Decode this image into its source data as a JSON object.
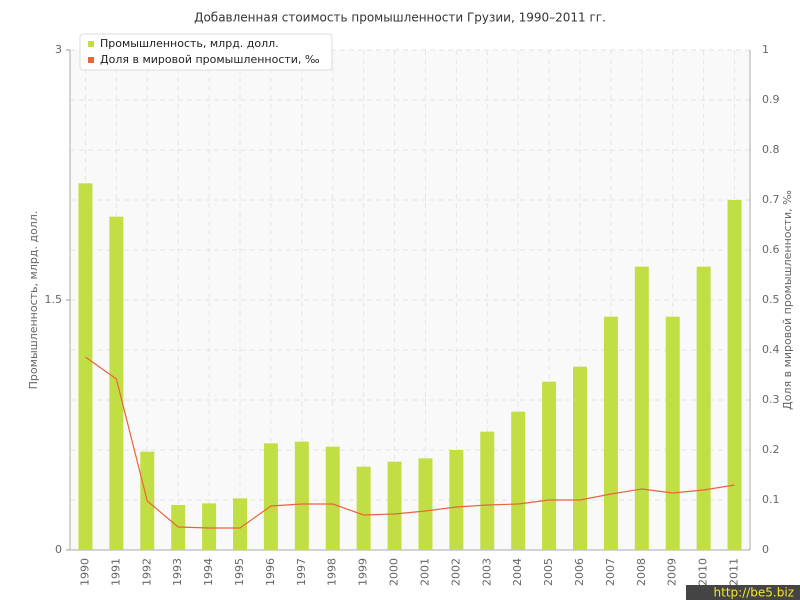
{
  "chart_data": {
    "type": "bar_line",
    "title": "Добавленная стоимость промышленности Грузии, 1990–2011 гг.",
    "y_label": "Промышленность, млрд. долл.",
    "y2_label": "Доля в мировой промышленности, ‰",
    "categories": [
      "1990",
      "1991",
      "1992",
      "1993",
      "1994",
      "1995",
      "1996",
      "1997",
      "1998",
      "1999",
      "2000",
      "2001",
      "2002",
      "2003",
      "2004",
      "2005",
      "2006",
      "2007",
      "2008",
      "2009",
      "2010",
      "2011"
    ],
    "series": [
      {
        "name": "Промышленность, млрд. долл.",
        "type": "bar",
        "color": "#c2de45",
        "values": [
          2.2,
          2.0,
          0.59,
          0.27,
          0.28,
          0.31,
          0.64,
          0.65,
          0.62,
          0.5,
          0.53,
          0.55,
          0.6,
          0.71,
          0.83,
          1.01,
          1.1,
          1.4,
          1.7,
          1.4,
          1.7,
          2.1
        ]
      },
      {
        "name": "Доля в мировой промышленности, ‰",
        "type": "line",
        "color": "#e8643c",
        "axis": "y2",
        "values": [
          0.386,
          0.342,
          0.098,
          0.046,
          0.044,
          0.044,
          0.088,
          0.092,
          0.092,
          0.07,
          0.072,
          0.078,
          0.086,
          0.09,
          0.092,
          0.1,
          0.1,
          0.112,
          0.122,
          0.114,
          0.12,
          0.13
        ]
      }
    ],
    "ylim": [
      0,
      3
    ],
    "yticks": [
      0,
      1.5,
      3
    ],
    "y2lim": [
      0,
      1
    ],
    "y2ticks": [
      0,
      0.1,
      0.2,
      0.3,
      0.4,
      0.5,
      0.6,
      0.7,
      0.8,
      0.9,
      1
    ],
    "grid": true,
    "legend": "upper left"
  },
  "watermark": "http://be5.biz"
}
